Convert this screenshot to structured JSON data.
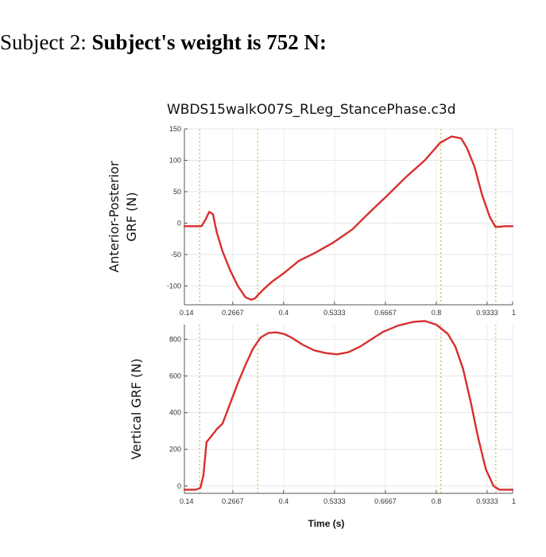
{
  "heading": {
    "prefix": "Subject 2: ",
    "bold": "Subject's weight is 752 N:"
  },
  "chart_data": [
    {
      "type": "line",
      "title": "WBDS15walkO07S_RLeg_StancePhase.c3d",
      "ylabel_lines": [
        "Anterior-Posterior",
        "GRF (N)"
      ],
      "xlabel": "",
      "xlim": [
        0.14,
        1.0
      ],
      "ylim": [
        -130,
        150
      ],
      "x_ticks": [
        "0.14",
        "0.2667",
        "0.4",
        "0.5333",
        "0.6667",
        "0.8",
        "0.9333",
        "1"
      ],
      "x_tick_values": [
        0.14,
        0.2667,
        0.4,
        0.5333,
        0.6667,
        0.8,
        0.9333,
        1.0
      ],
      "y_ticks": [
        "150",
        "100",
        "50",
        "0",
        "-50",
        "-100"
      ],
      "y_tick_values": [
        150,
        100,
        50,
        0,
        -50,
        -100
      ],
      "event_lines_x": [
        0.18,
        0.332,
        0.812,
        0.956
      ],
      "series": [
        {
          "name": "Anterior-Posterior GRF",
          "color": "#d62f2f",
          "x": [
            0.14,
            0.17,
            0.185,
            0.195,
            0.205,
            0.215,
            0.225,
            0.24,
            0.26,
            0.28,
            0.3,
            0.315,
            0.325,
            0.335,
            0.35,
            0.37,
            0.4,
            0.44,
            0.48,
            0.53,
            0.58,
            0.63,
            0.67,
            0.72,
            0.77,
            0.81,
            0.84,
            0.865,
            0.88,
            0.9,
            0.92,
            0.94,
            0.955,
            0.965,
            0.98,
            1.0
          ],
          "values": [
            -5,
            -5,
            -5,
            5,
            18,
            14,
            -15,
            -45,
            -75,
            -100,
            -118,
            -122,
            -120,
            -113,
            -104,
            -93,
            -80,
            -60,
            -48,
            -31,
            -10,
            20,
            43,
            73,
            100,
            128,
            138,
            135,
            120,
            90,
            45,
            10,
            -6,
            -6,
            -5,
            -5
          ]
        }
      ]
    },
    {
      "type": "line",
      "title": "",
      "ylabel_lines": [
        "Vertical GRF (N)"
      ],
      "xlabel": "Time (s)",
      "xlim": [
        0.14,
        1.0
      ],
      "ylim": [
        -40,
        880
      ],
      "x_ticks": [
        "0.14",
        "0.2667",
        "0.4",
        "0.5333",
        "0.6667",
        "0.8",
        "0.9333",
        "1"
      ],
      "x_tick_values": [
        0.14,
        0.2667,
        0.4,
        0.5333,
        0.6667,
        0.8,
        0.9333,
        1.0
      ],
      "y_ticks": [
        "800",
        "600",
        "400",
        "200",
        "0"
      ],
      "y_tick_values": [
        800,
        600,
        400,
        200,
        0
      ],
      "event_lines_x": [
        0.18,
        0.332,
        0.812,
        0.956
      ],
      "series": [
        {
          "name": "Vertical GRF",
          "color": "#d62f2f",
          "x": [
            0.14,
            0.17,
            0.182,
            0.19,
            0.198,
            0.21,
            0.225,
            0.24,
            0.26,
            0.28,
            0.3,
            0.32,
            0.34,
            0.36,
            0.38,
            0.4,
            0.42,
            0.45,
            0.48,
            0.51,
            0.54,
            0.57,
            0.6,
            0.63,
            0.66,
            0.7,
            0.74,
            0.77,
            0.8,
            0.83,
            0.85,
            0.87,
            0.89,
            0.91,
            0.93,
            0.95,
            0.965,
            0.98,
            1.0
          ],
          "values": [
            -20,
            -20,
            -10,
            60,
            240,
            270,
            310,
            340,
            450,
            560,
            660,
            750,
            810,
            835,
            838,
            830,
            810,
            770,
            740,
            725,
            718,
            730,
            760,
            800,
            840,
            875,
            895,
            900,
            880,
            830,
            760,
            640,
            460,
            260,
            90,
            0,
            -20,
            -20,
            -20
          ]
        }
      ]
    }
  ]
}
